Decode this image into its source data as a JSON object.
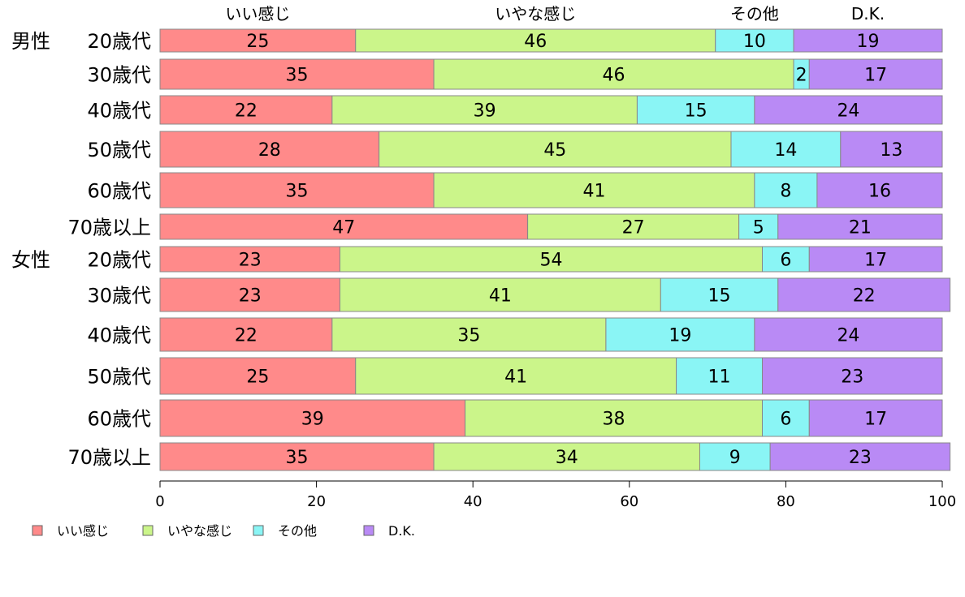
{
  "chart_data": {
    "type": "bar",
    "orientation": "horizontal",
    "stacked": true,
    "title": "",
    "xlabel": "",
    "ylabel": "",
    "xlim": [
      0,
      100
    ],
    "xticks": [
      0,
      20,
      40,
      60,
      80,
      100
    ],
    "top_labels": [
      "いい感じ",
      "いやな感じ",
      "その他",
      "D.K."
    ],
    "legend_position": "bottom-left",
    "group_labels": [
      "男性",
      "女性"
    ],
    "categories": [
      "20歳代",
      "30歳代",
      "40歳代",
      "50歳代",
      "60歳代",
      "70歳以上",
      "20歳代",
      "30歳代",
      "40歳代",
      "50歳代",
      "60歳代",
      "70歳以上"
    ],
    "series": [
      {
        "name": "いい感じ",
        "color": "#ff8a8a",
        "values": [
          25,
          35,
          22,
          28,
          35,
          47,
          23,
          23,
          22,
          25,
          39,
          35
        ]
      },
      {
        "name": "いやな感じ",
        "color": "#cbf58a",
        "values": [
          46,
          46,
          39,
          45,
          41,
          27,
          54,
          41,
          35,
          41,
          38,
          34
        ]
      },
      {
        "name": "その他",
        "color": "#8af5f5",
        "values": [
          10,
          2,
          15,
          14,
          8,
          5,
          6,
          15,
          19,
          11,
          6,
          9
        ]
      },
      {
        "name": "D.K.",
        "color": "#b98af5",
        "values": [
          19,
          17,
          24,
          13,
          16,
          21,
          17,
          22,
          24,
          23,
          17,
          23
        ]
      }
    ]
  }
}
